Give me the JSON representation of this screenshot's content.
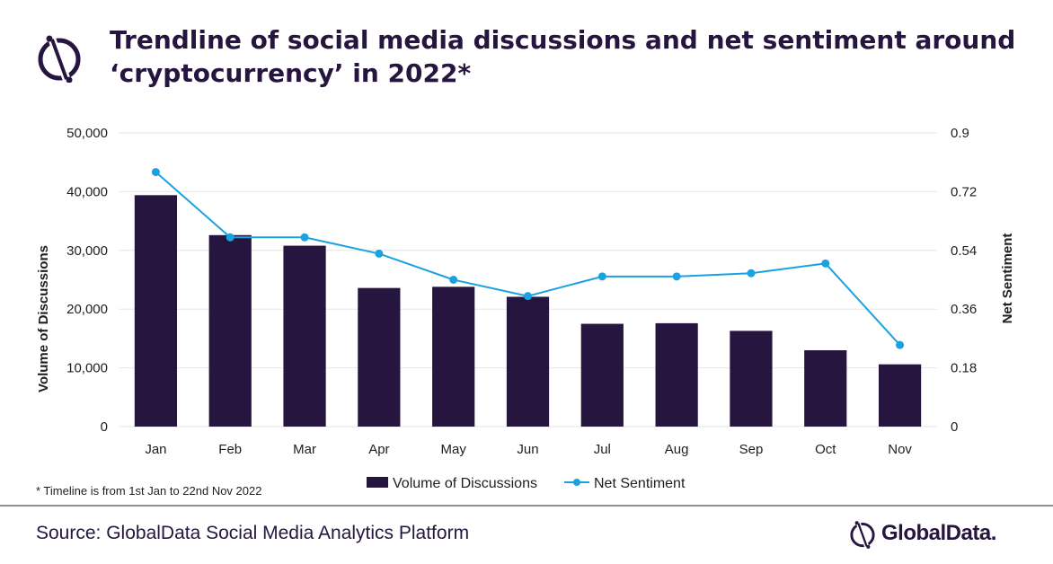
{
  "header": {
    "title": "Trendline of social media discussions and net sentiment around ‘cryptocurrency’ in 2022*"
  },
  "footnote": "* Timeline is from 1st Jan to 22nd Nov 2022",
  "source": "Source: GlobalData Social Media Analytics Platform",
  "brand": {
    "name": "GlobalData."
  },
  "icons": {
    "title_logo": "globaldata-logo-icon",
    "brand_logo": "globaldata-logo-icon"
  },
  "colors": {
    "bar": "#25153f",
    "line": "#1ba1e2",
    "title": "#25153f",
    "grid": "#e6e6e6"
  },
  "chart_data": {
    "type": "bar",
    "categories": [
      "Jan",
      "Feb",
      "Mar",
      "Apr",
      "May",
      "Jun",
      "Jul",
      "Aug",
      "Sep",
      "Oct",
      "Nov"
    ],
    "series": [
      {
        "name": "Volume of Discussions",
        "type": "bar",
        "axis": "left",
        "values": [
          39400,
          32600,
          30800,
          23600,
          23800,
          22100,
          17500,
          17600,
          16300,
          13000,
          10600
        ]
      },
      {
        "name": "Net Sentiment",
        "type": "line",
        "axis": "right",
        "values": [
          0.78,
          0.58,
          0.58,
          0.53,
          0.45,
          0.4,
          0.46,
          0.46,
          0.47,
          0.5,
          0.25
        ]
      }
    ],
    "y_left": {
      "label": "Volume of Discussions",
      "ylim": [
        0,
        50000
      ],
      "ticks": [
        "0",
        "10,000",
        "20,000",
        "30,000",
        "40,000",
        "50,000"
      ],
      "tick_values": [
        0,
        10000,
        20000,
        30000,
        40000,
        50000
      ]
    },
    "y_right": {
      "label": "Net Sentiment",
      "ylim": [
        0,
        0.9
      ],
      "ticks": [
        "0",
        "0.18",
        "0.36",
        "0.54",
        "0.72",
        "0.9"
      ],
      "tick_values": [
        0,
        0.18,
        0.36,
        0.54,
        0.72,
        0.9
      ]
    },
    "grid": true,
    "legend_position": "bottom"
  }
}
